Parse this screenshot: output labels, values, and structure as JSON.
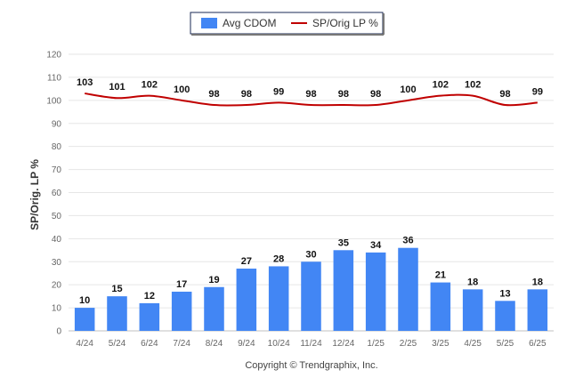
{
  "chart_data": {
    "type": "bar",
    "title": "",
    "xlabel": "",
    "ylabel": "SP/Orig. LP %",
    "ylim": [
      0,
      120
    ],
    "yticks": [
      0,
      10,
      20,
      30,
      40,
      50,
      60,
      70,
      80,
      90,
      100,
      110,
      120
    ],
    "grid": true,
    "legend_position": "top-center",
    "categories": [
      "4/24",
      "5/24",
      "6/24",
      "7/24",
      "8/24",
      "9/24",
      "10/24",
      "11/24",
      "12/24",
      "1/25",
      "2/25",
      "3/25",
      "4/25",
      "5/25",
      "6/25"
    ],
    "series": [
      {
        "name": "Avg CDOM",
        "type": "bar",
        "color": "#4286f4",
        "values": [
          10,
          15,
          12,
          17,
          19,
          27,
          28,
          30,
          35,
          34,
          36,
          21,
          18,
          13,
          18
        ]
      },
      {
        "name": "SP/Orig LP %",
        "type": "line",
        "color": "#c00000",
        "values": [
          103,
          101,
          102,
          100,
          98,
          98,
          99,
          98,
          98,
          98,
          100,
          102,
          102,
          98,
          99
        ]
      }
    ],
    "credit": "Copyright © Trendgraphix, Inc."
  }
}
